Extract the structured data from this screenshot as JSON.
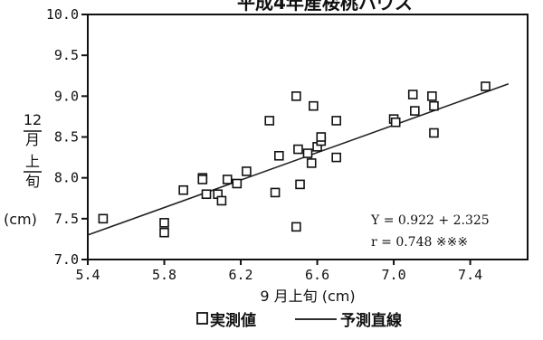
{
  "chart_data": {
    "type": "scatter",
    "title": "平成4年産桜桃ハウス",
    "xlabel": "9 月上旬 (cm)",
    "ylabel_chars": [
      "12",
      "月",
      "上",
      "旬"
    ],
    "ylabel_unit": "(cm)",
    "xlim": [
      5.4,
      7.7
    ],
    "ylim": [
      7.0,
      10.0
    ],
    "xticks": [
      5.4,
      5.8,
      6.2,
      6.6,
      7.0,
      7.4
    ],
    "xtick_labels": [
      "5.4",
      "5.8",
      "6.2",
      "6.6",
      "7.0",
      "7.4"
    ],
    "yticks": [
      7.0,
      7.5,
      8.0,
      8.5,
      9.0,
      9.5,
      10.0
    ],
    "ytick_labels": [
      "7.0",
      "7.5",
      "8.0",
      "8.5",
      "9.0",
      "9.5",
      "10.0"
    ],
    "series": [
      {
        "name": "実測値",
        "marker": "square",
        "points": [
          [
            5.48,
            7.5
          ],
          [
            5.8,
            7.45
          ],
          [
            5.8,
            7.33
          ],
          [
            5.9,
            7.85
          ],
          [
            6.0,
            8.0
          ],
          [
            6.0,
            7.98
          ],
          [
            6.02,
            7.8
          ],
          [
            6.08,
            7.8
          ],
          [
            6.1,
            7.72
          ],
          [
            6.13,
            7.98
          ],
          [
            6.18,
            7.93
          ],
          [
            6.23,
            8.08
          ],
          [
            6.35,
            8.7
          ],
          [
            6.38,
            7.82
          ],
          [
            6.4,
            8.27
          ],
          [
            6.49,
            9.0
          ],
          [
            6.5,
            8.35
          ],
          [
            6.51,
            7.92
          ],
          [
            6.49,
            7.4
          ],
          [
            6.55,
            8.3
          ],
          [
            6.57,
            8.18
          ],
          [
            6.58,
            8.88
          ],
          [
            6.6,
            8.38
          ],
          [
            6.62,
            8.45
          ],
          [
            6.62,
            8.5
          ],
          [
            6.7,
            8.7
          ],
          [
            6.7,
            8.25
          ],
          [
            7.0,
            8.72
          ],
          [
            7.01,
            8.68
          ],
          [
            7.1,
            9.02
          ],
          [
            7.11,
            8.82
          ],
          [
            7.2,
            9.0
          ],
          [
            7.21,
            8.88
          ],
          [
            7.21,
            8.55
          ],
          [
            7.48,
            9.12
          ]
        ]
      },
      {
        "name": "予測直線",
        "type": "line",
        "points": [
          [
            5.4,
            7.3
          ],
          [
            7.6,
            9.15
          ]
        ]
      }
    ],
    "annotations": [
      "Y = 0.922 + 2.325",
      "r = 0.748 ※※※"
    ],
    "legend": "bottom"
  }
}
